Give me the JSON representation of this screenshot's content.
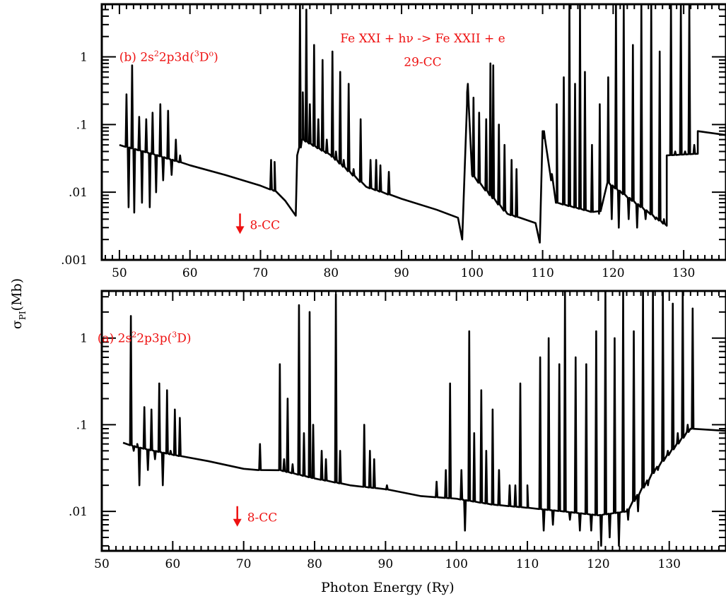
{
  "chart_data": [
    {
      "type": "line",
      "panel": "top",
      "title": "",
      "xlabel": "",
      "ylabel": "",
      "yscale": "log",
      "xlim": [
        47.5,
        136
      ],
      "ylim": [
        0.001,
        6
      ],
      "x_ticks": [
        50,
        60,
        70,
        80,
        90,
        100,
        110,
        120,
        130
      ],
      "y_ticks": [
        {
          "value": 0.001,
          "label": ".001"
        },
        {
          "value": 0.01,
          "label": ".01"
        },
        {
          "value": 0.1,
          "label": ".1"
        },
        {
          "value": 1,
          "label": "1"
        }
      ],
      "annotations": [
        {
          "text": "(b) 2s",
          "sup": "2",
          "text2": "2p3d(",
          "sup2": "3",
          "text3": "D",
          "sup3": "o",
          "text4": ")",
          "x": 57,
          "y": 1.0
        },
        {
          "text": "Fe XXI + hν -> Fe XXII + e",
          "x": 93,
          "y": 1.9
        },
        {
          "text": "29-CC",
          "x": 93,
          "y": 0.85
        },
        {
          "text": "8-CC",
          "x": 68.5,
          "y": 0.0033,
          "arrow": "down"
        }
      ],
      "series": [
        {
          "background": [
            [
              50,
              0.05
            ],
            [
              55,
              0.036
            ],
            [
              60,
              0.025
            ],
            [
              65,
              0.018
            ],
            [
              70,
              0.0125
            ],
            [
              72,
              0.0105
            ],
            [
              73.5,
              0.0075
            ],
            [
              75,
              0.0045
            ],
            [
              75.2,
              0.035
            ],
            [
              76,
              0.06
            ],
            [
              80,
              0.035
            ],
            [
              85,
              0.012
            ],
            [
              90,
              0.008
            ],
            [
              95,
              0.0055
            ],
            [
              98,
              0.0042
            ],
            [
              98.6,
              0.002
            ],
            [
              99.3,
              0.3
            ],
            [
              100,
              0.018
            ],
            [
              105,
              0.0048
            ],
            [
              109,
              0.0035
            ],
            [
              109.6,
              0.0018
            ],
            [
              110,
              0.08
            ],
            [
              112,
              0.007
            ],
            [
              118,
              0.0048
            ],
            [
              119.2,
              0.014
            ],
            [
              127.6,
              0.0032
            ],
            [
              127.6,
              0.035
            ],
            [
              132,
              0.037
            ],
            [
              132,
              0.08
            ],
            [
              136,
              0.07
            ]
          ],
          "resonances": [
            [
              51.0,
              0.28
            ],
            [
              51.3,
              0.006
            ],
            [
              51.8,
              0.75
            ],
            [
              52.1,
              0.005
            ],
            [
              52.8,
              0.13
            ],
            [
              53.2,
              0.007
            ],
            [
              53.8,
              0.12
            ],
            [
              54.3,
              0.006
            ],
            [
              54.7,
              0.15
            ],
            [
              55.2,
              0.01
            ],
            [
              55.8,
              0.2
            ],
            [
              56.2,
              0.015
            ],
            [
              56.9,
              0.16
            ],
            [
              57.4,
              0.018
            ],
            [
              58.0,
              0.06
            ],
            [
              58.6,
              0.035
            ],
            [
              71.5,
              0.03
            ],
            [
              72.0,
              0.028
            ],
            [
              75.6,
              6
            ],
            [
              76.0,
              0.3
            ],
            [
              76.5,
              5
            ],
            [
              77.0,
              0.2
            ],
            [
              77.6,
              1.5
            ],
            [
              78.2,
              0.12
            ],
            [
              78.8,
              0.9
            ],
            [
              79.4,
              0.06
            ],
            [
              80.2,
              1.2
            ],
            [
              80.7,
              0.04
            ],
            [
              81.3,
              0.6
            ],
            [
              81.8,
              0.03
            ],
            [
              82.5,
              0.4
            ],
            [
              83.2,
              0.022
            ],
            [
              84.2,
              0.12
            ],
            [
              85.6,
              0.03
            ],
            [
              86.4,
              0.03
            ],
            [
              87.0,
              0.025
            ],
            [
              88.2,
              0.02
            ],
            [
              99.4,
              0.4
            ],
            [
              100.2,
              0.25
            ],
            [
              101.0,
              0.15
            ],
            [
              102.0,
              0.12
            ],
            [
              102.6,
              0.8
            ],
            [
              103.0,
              0.75
            ],
            [
              103.8,
              0.1
            ],
            [
              104.6,
              0.05
            ],
            [
              105.6,
              0.03
            ],
            [
              106.3,
              0.022
            ],
            [
              110.2,
              0.08
            ],
            [
              111.2,
              0.015
            ],
            [
              112.0,
              0.2
            ],
            [
              113.0,
              0.5
            ],
            [
              113.8,
              6
            ],
            [
              114.6,
              0.4
            ],
            [
              115.3,
              6
            ],
            [
              116.0,
              0.6
            ],
            [
              117.0,
              0.05
            ],
            [
              118.1,
              0.2
            ],
            [
              119.3,
              0.5
            ],
            [
              119.8,
              0.004
            ],
            [
              120.4,
              6
            ],
            [
              120.8,
              0.003
            ],
            [
              121.5,
              6
            ],
            [
              122.2,
              0.004
            ],
            [
              122.8,
              1.5
            ],
            [
              123.4,
              0.003
            ],
            [
              124.0,
              6
            ],
            [
              124.6,
              0.004
            ],
            [
              125.4,
              6
            ],
            [
              126.0,
              0.004
            ],
            [
              126.6,
              1.2
            ],
            [
              127.2,
              0.004
            ],
            [
              128.2,
              6
            ],
            [
              128.8,
              0.04
            ],
            [
              129.6,
              6
            ],
            [
              130.2,
              0.04
            ],
            [
              130.8,
              6
            ],
            [
              131.5,
              0.05
            ]
          ]
        }
      ]
    },
    {
      "type": "line",
      "panel": "bottom",
      "title": "",
      "xlabel": "Photon Energy (Ry)",
      "ylabel": "",
      "yscale": "log",
      "xlim": [
        50,
        138
      ],
      "ylim": [
        0.0035,
        3.5
      ],
      "x_ticks": [
        50,
        60,
        70,
        80,
        90,
        100,
        110,
        120,
        130
      ],
      "y_ticks": [
        {
          "value": 0.01,
          "label": ".01"
        },
        {
          "value": 0.1,
          "label": ".1"
        },
        {
          "value": 1,
          "label": "1"
        }
      ],
      "annotations": [
        {
          "text": "(a) 2s",
          "sup": "2",
          "text2": "2p3p(",
          "sup2": "3",
          "text3": "D)",
          "x": 56,
          "y": 1.0
        },
        {
          "text": "8-CC",
          "x": 70.5,
          "y": 0.0085,
          "arrow": "down"
        }
      ],
      "series": [
        {
          "background": [
            [
              53,
              0.062
            ],
            [
              55,
              0.055
            ],
            [
              60,
              0.045
            ],
            [
              65,
              0.038
            ],
            [
              70,
              0.031
            ],
            [
              72,
              0.03
            ],
            [
              75,
              0.03
            ],
            [
              80,
              0.024
            ],
            [
              85,
              0.02
            ],
            [
              90,
              0.018
            ],
            [
              95,
              0.015
            ],
            [
              100,
              0.014
            ],
            [
              105,
              0.012
            ],
            [
              110,
              0.011
            ],
            [
              115,
              0.01
            ],
            [
              120,
              0.009
            ],
            [
              124,
              0.01
            ],
            [
              128,
              0.03
            ],
            [
              133,
              0.09
            ],
            [
              138,
              0.085
            ]
          ],
          "resonances": [
            [
              54.1,
              1.8
            ],
            [
              54.5,
              0.05
            ],
            [
              55.0,
              0.06
            ],
            [
              55.3,
              0.02
            ],
            [
              56.0,
              0.16
            ],
            [
              56.5,
              0.03
            ],
            [
              57.0,
              0.15
            ],
            [
              57.5,
              0.04
            ],
            [
              58.1,
              0.3
            ],
            [
              58.6,
              0.02
            ],
            [
              59.2,
              0.25
            ],
            [
              59.7,
              0.05
            ],
            [
              60.3,
              0.15
            ],
            [
              61.0,
              0.12
            ],
            [
              72.3,
              0.06
            ],
            [
              75.1,
              0.5
            ],
            [
              75.7,
              0.04
            ],
            [
              76.2,
              0.2
            ],
            [
              76.9,
              0.035
            ],
            [
              77.8,
              2.4
            ],
            [
              78.5,
              0.08
            ],
            [
              79.3,
              2.0
            ],
            [
              79.8,
              0.1
            ],
            [
              81.0,
              0.05
            ],
            [
              81.6,
              0.04
            ],
            [
              83.0,
              3.2
            ],
            [
              83.6,
              0.05
            ],
            [
              87.0,
              0.1
            ],
            [
              87.8,
              0.05
            ],
            [
              88.4,
              0.04
            ],
            [
              90.2,
              0.02
            ],
            [
              97.2,
              0.022
            ],
            [
              98.5,
              0.03
            ],
            [
              99.1,
              0.3
            ],
            [
              100.7,
              0.03
            ],
            [
              101.2,
              0.006
            ],
            [
              101.8,
              1.2
            ],
            [
              102.5,
              0.08
            ],
            [
              103.5,
              0.25
            ],
            [
              104.2,
              0.05
            ],
            [
              105.1,
              0.15
            ],
            [
              106.0,
              0.03
            ],
            [
              107.5,
              0.02
            ],
            [
              108.3,
              0.02
            ],
            [
              109.0,
              0.3
            ],
            [
              110.0,
              0.02
            ],
            [
              111.8,
              0.6
            ],
            [
              112.3,
              0.006
            ],
            [
              113.0,
              1.0
            ],
            [
              113.6,
              0.007
            ],
            [
              114.5,
              0.5
            ],
            [
              115.3,
              3.5
            ],
            [
              116.0,
              0.008
            ],
            [
              116.8,
              0.6
            ],
            [
              117.4,
              0.006
            ],
            [
              118.3,
              0.5
            ],
            [
              119.0,
              0.006
            ],
            [
              119.7,
              1.2
            ],
            [
              120.4,
              0.004
            ],
            [
              121.0,
              3.5
            ],
            [
              121.6,
              0.005
            ],
            [
              122.3,
              1.0
            ],
            [
              122.9,
              0.004
            ],
            [
              123.5,
              3.5
            ],
            [
              124.2,
              0.008
            ],
            [
              125.0,
              1.2
            ],
            [
              125.6,
              0.01
            ],
            [
              126.3,
              3.5
            ],
            [
              127.0,
              0.02
            ],
            [
              127.7,
              3.5
            ],
            [
              128.4,
              0.03
            ],
            [
              129.1,
              3.5
            ],
            [
              129.8,
              0.05
            ],
            [
              130.5,
              2.5
            ],
            [
              131.2,
              0.08
            ],
            [
              131.9,
              3.5
            ],
            [
              132.6,
              0.1
            ],
            [
              133.3,
              2.2
            ]
          ]
        }
      ]
    }
  ],
  "shared_ylabel": {
    "main": "σ",
    "sub": "PI",
    "unit": "(Mb)"
  }
}
